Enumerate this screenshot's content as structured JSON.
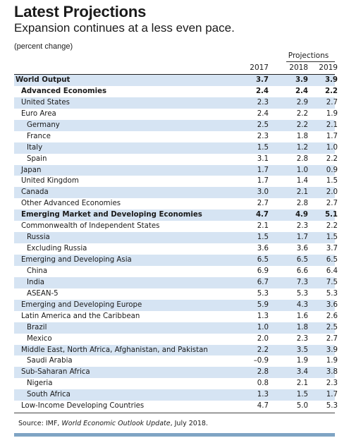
{
  "title": "Latest Projections",
  "subtitle": "Expansion continues at a less even pace.",
  "unit": "(percent change)",
  "projections_label": "Projections",
  "years": [
    "2017",
    "2018",
    "2019"
  ],
  "rows": [
    {
      "label": "World Output",
      "values": [
        "3.7",
        "3.9",
        "3.9"
      ],
      "bold": true,
      "shade": true,
      "indent": 0
    },
    {
      "label": "Advanced Economies",
      "values": [
        "2.4",
        "2.4",
        "2.2"
      ],
      "bold": true,
      "shade": false,
      "indent": 1
    },
    {
      "label": "United States",
      "values": [
        "2.3",
        "2.9",
        "2.7"
      ],
      "bold": false,
      "shade": true,
      "indent": 1
    },
    {
      "label": "Euro Area",
      "values": [
        "2.4",
        "2.2",
        "1.9"
      ],
      "bold": false,
      "shade": false,
      "indent": 1
    },
    {
      "label": "Germany",
      "values": [
        "2.5",
        "2.2",
        "2.1"
      ],
      "bold": false,
      "shade": true,
      "indent": 2
    },
    {
      "label": "France",
      "values": [
        "2.3",
        "1.8",
        "1.7"
      ],
      "bold": false,
      "shade": false,
      "indent": 2
    },
    {
      "label": "Italy",
      "values": [
        "1.5",
        "1.2",
        "1.0"
      ],
      "bold": false,
      "shade": true,
      "indent": 2
    },
    {
      "label": "Spain",
      "values": [
        "3.1",
        "2.8",
        "2.2"
      ],
      "bold": false,
      "shade": false,
      "indent": 2
    },
    {
      "label": "Japan",
      "values": [
        "1.7",
        "1.0",
        "0.9"
      ],
      "bold": false,
      "shade": true,
      "indent": 1
    },
    {
      "label": "United Kingdom",
      "values": [
        "1.7",
        "1.4",
        "1.5"
      ],
      "bold": false,
      "shade": false,
      "indent": 1
    },
    {
      "label": "Canada",
      "values": [
        "3.0",
        "2.1",
        "2.0"
      ],
      "bold": false,
      "shade": true,
      "indent": 1
    },
    {
      "label": "Other Advanced Economies",
      "values": [
        "2.7",
        "2.8",
        "2.7"
      ],
      "bold": false,
      "shade": false,
      "indent": 1
    },
    {
      "label": "Emerging Market and Developing Economies",
      "values": [
        "4.7",
        "4.9",
        "5.1"
      ],
      "bold": true,
      "shade": true,
      "indent": 1
    },
    {
      "label": "Commonwealth of Independent States",
      "values": [
        "2.1",
        "2.3",
        "2.2"
      ],
      "bold": false,
      "shade": false,
      "indent": 1
    },
    {
      "label": "Russia",
      "values": [
        "1.5",
        "1.7",
        "1.5"
      ],
      "bold": false,
      "shade": true,
      "indent": 2
    },
    {
      "label": "Excluding Russia",
      "values": [
        "3.6",
        "3.6",
        "3.7"
      ],
      "bold": false,
      "shade": false,
      "indent": 2
    },
    {
      "label": "Emerging and Developing Asia",
      "values": [
        "6.5",
        "6.5",
        "6.5"
      ],
      "bold": false,
      "shade": true,
      "indent": 1
    },
    {
      "label": "China",
      "values": [
        "6.9",
        "6.6",
        "6.4"
      ],
      "bold": false,
      "shade": false,
      "indent": 2
    },
    {
      "label": "India",
      "values": [
        "6.7",
        "7.3",
        "7.5"
      ],
      "bold": false,
      "shade": true,
      "indent": 2
    },
    {
      "label": "ASEAN-5",
      "values": [
        "5.3",
        "5.3",
        "5.3"
      ],
      "bold": false,
      "shade": false,
      "indent": 2
    },
    {
      "label": "Emerging and Developing Europe",
      "values": [
        "5.9",
        "4.3",
        "3.6"
      ],
      "bold": false,
      "shade": true,
      "indent": 1
    },
    {
      "label": "Latin America and the Caribbean",
      "values": [
        "1.3",
        "1.6",
        "2.6"
      ],
      "bold": false,
      "shade": false,
      "indent": 1
    },
    {
      "label": "Brazil",
      "values": [
        "1.0",
        "1.8",
        "2.5"
      ],
      "bold": false,
      "shade": true,
      "indent": 2
    },
    {
      "label": "Mexico",
      "values": [
        "2.0",
        "2.3",
        "2.7"
      ],
      "bold": false,
      "shade": false,
      "indent": 2
    },
    {
      "label": "Middle East, North Africa, Afghanistan, and Pakistan",
      "values": [
        "2.2",
        "3.5",
        "3.9"
      ],
      "bold": false,
      "shade": true,
      "indent": 1
    },
    {
      "label": "Saudi Arabia",
      "values": [
        "–0.9",
        "1.9",
        "1.9"
      ],
      "bold": false,
      "shade": false,
      "indent": 2
    },
    {
      "label": "Sub-Saharan Africa",
      "values": [
        "2.8",
        "3.4",
        "3.8"
      ],
      "bold": false,
      "shade": true,
      "indent": 1
    },
    {
      "label": "Nigeria",
      "values": [
        "0.8",
        "2.1",
        "2.3"
      ],
      "bold": false,
      "shade": false,
      "indent": 2
    },
    {
      "label": "South Africa",
      "values": [
        "1.3",
        "1.5",
        "1.7"
      ],
      "bold": false,
      "shade": true,
      "indent": 2
    },
    {
      "label": "Low-Income Developing Countries",
      "values": [
        "4.7",
        "5.0",
        "5.3"
      ],
      "bold": false,
      "shade": false,
      "indent": 1
    }
  ],
  "source": {
    "prefix": "Source: IMF, ",
    "publication": "World Economic Outlook Update",
    "suffix": ", July 2018."
  }
}
